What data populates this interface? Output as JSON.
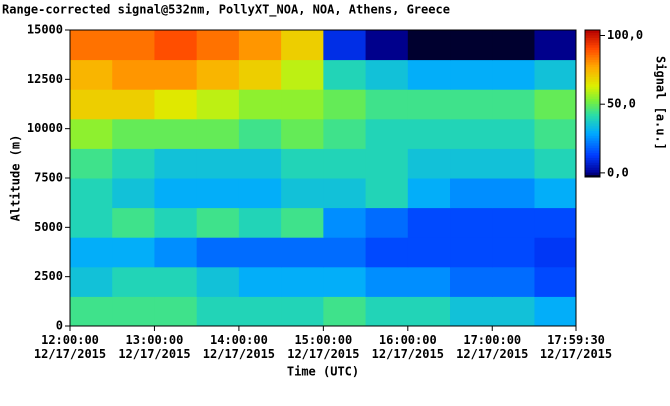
{
  "chart_data": {
    "type": "heatmap",
    "title": "Range-corrected signal@532nm, PollyXT_NOA, NOA, Athens, Greece",
    "x_label": "Time (UTC)",
    "y_label": "Altitude (m)",
    "colorbar_label": "Signal [a.u.]",
    "x": [
      12.25,
      12.75,
      13.25,
      13.75,
      14.25,
      14.75,
      15.25,
      15.75,
      16.25,
      16.75,
      17.25,
      17.75
    ],
    "y": [
      750,
      2250,
      3750,
      5250,
      6750,
      8250,
      9750,
      11250,
      12750,
      14250
    ],
    "values": [
      [
        45,
        45,
        45,
        40,
        40,
        40,
        45,
        40,
        40,
        35,
        35,
        30
      ],
      [
        35,
        40,
        40,
        35,
        30,
        30,
        30,
        25,
        25,
        20,
        20,
        15
      ],
      [
        30,
        30,
        25,
        20,
        20,
        20,
        20,
        15,
        15,
        15,
        15,
        12
      ],
      [
        40,
        45,
        40,
        45,
        40,
        45,
        25,
        20,
        15,
        15,
        15,
        15
      ],
      [
        40,
        35,
        30,
        30,
        30,
        35,
        35,
        40,
        30,
        25,
        25,
        30
      ],
      [
        45,
        40,
        35,
        35,
        35,
        40,
        40,
        40,
        35,
        35,
        35,
        40
      ],
      [
        55,
        50,
        50,
        50,
        45,
        50,
        45,
        40,
        40,
        40,
        40,
        45
      ],
      [
        70,
        70,
        65,
        60,
        55,
        55,
        50,
        45,
        45,
        45,
        45,
        50
      ],
      [
        75,
        80,
        80,
        75,
        70,
        60,
        40,
        35,
        30,
        30,
        30,
        35
      ],
      [
        85,
        85,
        90,
        85,
        80,
        70,
        10,
        0,
        -2,
        -2,
        -2,
        0
      ]
    ],
    "xlim": [
      12,
      17.9917
    ],
    "xticks": [
      {
        "value": 12,
        "label": "12:00:00 12/17/2015"
      },
      {
        "value": 13,
        "label": "13:00:00 12/17/2015"
      },
      {
        "value": 14,
        "label": "14:00:00 12/17/2015"
      },
      {
        "value": 15,
        "label": "15:00:00 12/17/2015"
      },
      {
        "value": 16,
        "label": "16:00:00 12/17/2015"
      },
      {
        "value": 17,
        "label": "17:00:00 12/17/2015"
      },
      {
        "value": 17.9917,
        "label": "17:59:30 12/17/2015"
      }
    ],
    "ylim": [
      0,
      15000
    ],
    "yticks": [
      0,
      2500,
      5000,
      7500,
      10000,
      12500,
      15000
    ],
    "clim": [
      -3,
      104
    ],
    "cticks": [
      {
        "value": 0,
        "label": "0,0"
      },
      {
        "value": 50,
        "label": "50,0"
      },
      {
        "value": 100,
        "label": "100,0"
      }
    ]
  }
}
